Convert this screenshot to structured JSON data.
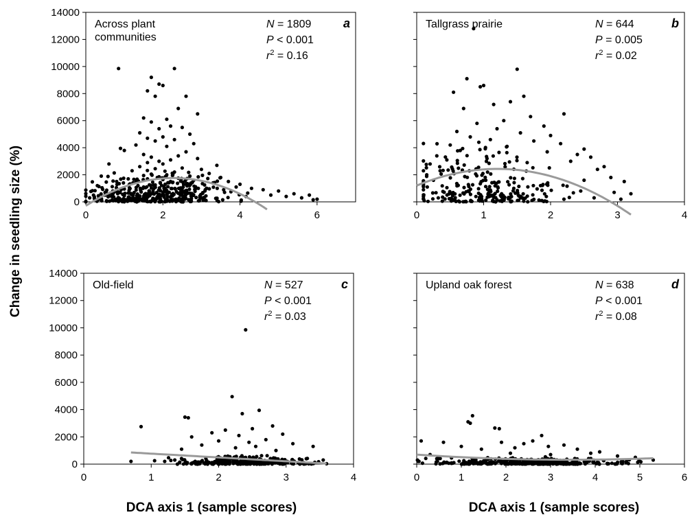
{
  "ylabel": "Change in seedling size (%)",
  "xlabel_left": "DCA axis 1 (sample scores)",
  "xlabel_right": "DCA axis 1 (sample scores)",
  "chart_data": [
    {
      "type": "scatter",
      "letter": "a",
      "label_lines": [
        "Across plant",
        "communities"
      ],
      "stats": {
        "N": "1809",
        "P": "< 0.001",
        "r2": "0.16"
      },
      "xlim": [
        0,
        7
      ],
      "ylim": [
        0,
        14000
      ],
      "xticks": [
        0,
        2,
        4,
        6
      ],
      "yticks": [
        0,
        2000,
        4000,
        6000,
        8000,
        10000,
        12000,
        14000
      ],
      "ytick_labels": true,
      "fit": [
        -290,
        1800,
        -395
      ],
      "fit_range": [
        0,
        4.7
      ],
      "cloud": {
        "n": 380,
        "peak": 1.8,
        "spread": 0.9,
        "xmin": 0,
        "xmax": 6.1,
        "level": 1200
      },
      "points": [
        [
          0.85,
          9850
        ],
        [
          2.3,
          9850
        ],
        [
          1.7,
          9200
        ],
        [
          1.9,
          8700
        ],
        [
          2.0,
          8600
        ],
        [
          1.6,
          8200
        ],
        [
          1.8,
          7800
        ],
        [
          2.6,
          7800
        ],
        [
          2.4,
          6900
        ],
        [
          2.9,
          6500
        ],
        [
          1.5,
          6200
        ],
        [
          2.1,
          6100
        ],
        [
          1.7,
          5900
        ],
        [
          2.2,
          5600
        ],
        [
          2.5,
          5500
        ],
        [
          1.9,
          5400
        ],
        [
          1.4,
          5100
        ],
        [
          2.7,
          5000
        ],
        [
          2.0,
          4800
        ],
        [
          1.6,
          4700
        ],
        [
          2.3,
          4600
        ],
        [
          1.8,
          4500
        ],
        [
          2.8,
          4300
        ],
        [
          1.3,
          4200
        ],
        [
          2.1,
          4100
        ],
        [
          0.9,
          3950
        ],
        [
          1.0,
          3800
        ],
        [
          2.6,
          3700
        ],
        [
          1.5,
          3500
        ],
        [
          2.4,
          3400
        ],
        [
          1.7,
          3300
        ],
        [
          2.9,
          3200
        ],
        [
          2.2,
          3100
        ],
        [
          1.9,
          3000
        ],
        [
          1.6,
          2900
        ],
        [
          0.6,
          2800
        ],
        [
          2.0,
          2800
        ],
        [
          3.4,
          2700
        ],
        [
          1.4,
          2600
        ],
        [
          2.5,
          2500
        ],
        [
          1.8,
          2450
        ],
        [
          3.0,
          2400
        ],
        [
          1.2,
          2300
        ],
        [
          2.3,
          2200
        ],
        [
          3.2,
          2100
        ],
        [
          1.7,
          2050
        ],
        [
          2.1,
          2000
        ],
        [
          0.4,
          1900
        ],
        [
          1.5,
          1950
        ],
        [
          2.7,
          1900
        ],
        [
          1.9,
          1850
        ],
        [
          3.5,
          1800
        ],
        [
          2.4,
          1750
        ],
        [
          1.1,
          1700
        ],
        [
          1.6,
          1700
        ],
        [
          2.0,
          1650
        ],
        [
          2.8,
          1600
        ],
        [
          3.7,
          1500
        ],
        [
          0.8,
          1500
        ],
        [
          2.2,
          1500
        ],
        [
          1.3,
          1450
        ],
        [
          3.3,
          1400
        ],
        [
          4.0,
          1300
        ],
        [
          2.6,
          1300
        ],
        [
          1.8,
          1250
        ],
        [
          0.3,
          1200
        ],
        [
          3.9,
          1100
        ],
        [
          4.3,
          1000
        ],
        [
          4.6,
          900
        ],
        [
          5.0,
          800
        ],
        [
          3.1,
          900
        ],
        [
          1.0,
          950
        ],
        [
          0.2,
          500
        ],
        [
          0.5,
          700
        ],
        [
          5.4,
          600
        ],
        [
          5.8,
          500
        ],
        [
          6.0,
          200
        ],
        [
          0.1,
          300
        ],
        [
          4.8,
          500
        ],
        [
          5.2,
          400
        ],
        [
          5.6,
          300
        ],
        [
          3.6,
          700
        ],
        [
          4.2,
          650
        ],
        [
          2.5,
          1000
        ],
        [
          1.5,
          1100
        ],
        [
          0.7,
          800
        ],
        [
          5.9,
          150
        ]
      ]
    },
    {
      "type": "scatter",
      "letter": "b",
      "label_lines": [
        "Tallgrass prairie"
      ],
      "stats": {
        "N": "644",
        "P": "0.005",
        "r2": "0.02"
      },
      "xlim": [
        0,
        4
      ],
      "ylim": [
        0,
        14000
      ],
      "xticks": [
        0,
        1,
        2,
        3,
        4
      ],
      "yticks": [
        0,
        2000,
        4000,
        6000,
        8000,
        10000,
        12000,
        14000
      ],
      "ytick_labels": false,
      "fit": [
        1200,
        2050,
        -850
      ],
      "fit_range": [
        0,
        3.2
      ],
      "cloud": {
        "n": 240,
        "peak": 1.0,
        "spread": 0.5,
        "xmin": 0.1,
        "xmax": 3.2,
        "level": 2200
      },
      "points": [
        [
          0.85,
          12800
        ],
        [
          1.5,
          9800
        ],
        [
          0.75,
          9100
        ],
        [
          1.0,
          8600
        ],
        [
          0.95,
          8500
        ],
        [
          0.55,
          8100
        ],
        [
          1.6,
          7800
        ],
        [
          1.4,
          7400
        ],
        [
          1.15,
          7200
        ],
        [
          0.7,
          6900
        ],
        [
          2.2,
          6500
        ],
        [
          1.7,
          6300
        ],
        [
          1.3,
          6000
        ],
        [
          0.9,
          5800
        ],
        [
          1.9,
          5600
        ],
        [
          1.2,
          5400
        ],
        [
          0.6,
          5200
        ],
        [
          1.55,
          5100
        ],
        [
          2.0,
          4900
        ],
        [
          0.8,
          4800
        ],
        [
          1.1,
          4600
        ],
        [
          1.75,
          4500
        ],
        [
          2.15,
          4300
        ],
        [
          0.5,
          4200
        ],
        [
          1.35,
          4100
        ],
        [
          2.5,
          3900
        ],
        [
          0.65,
          3800
        ],
        [
          1.95,
          3700
        ],
        [
          2.4,
          3500
        ],
        [
          0.3,
          3400
        ],
        [
          2.6,
          3300
        ],
        [
          1.05,
          3200
        ],
        [
          0.45,
          3100
        ],
        [
          2.3,
          3000
        ],
        [
          1.65,
          2900
        ],
        [
          0.2,
          2800
        ],
        [
          2.8,
          2600
        ],
        [
          2.7,
          2400
        ],
        [
          0.35,
          2300
        ],
        [
          0.15,
          2000
        ],
        [
          2.9,
          1800
        ],
        [
          3.1,
          1500
        ],
        [
          2.5,
          1600
        ],
        [
          0.25,
          1600
        ],
        [
          0.1,
          1300
        ],
        [
          2.65,
          300
        ],
        [
          3.2,
          600
        ],
        [
          3.05,
          200
        ],
        [
          2.2,
          200
        ],
        [
          0.55,
          150
        ],
        [
          1.2,
          150
        ],
        [
          2.45,
          800
        ],
        [
          2.95,
          700
        ],
        [
          1.85,
          1200
        ],
        [
          1.45,
          1000
        ]
      ]
    },
    {
      "type": "scatter",
      "letter": "c",
      "label_lines": [
        "Old-field"
      ],
      "stats": {
        "N": "527",
        "P": "< 0.001",
        "r2": "0.03"
      },
      "xlim": [
        0,
        4
      ],
      "ylim": [
        0,
        14000
      ],
      "xticks": [
        0,
        1,
        2,
        3,
        4
      ],
      "yticks": [
        0,
        2000,
        4000,
        6000,
        8000,
        10000,
        12000,
        14000
      ],
      "ytick_labels": true,
      "fit": [
        1050,
        -280,
        0
      ],
      "fit_range": [
        0.7,
        3.6
      ],
      "cloud": {
        "n": 300,
        "peak": 2.4,
        "spread": 0.45,
        "xmin": 1.2,
        "xmax": 3.6,
        "level": 300
      },
      "points": [
        [
          2.4,
          9850
        ],
        [
          2.2,
          4950
        ],
        [
          2.6,
          3950
        ],
        [
          2.35,
          3700
        ],
        [
          1.5,
          3450
        ],
        [
          1.55,
          3400
        ],
        [
          0.85,
          2750
        ],
        [
          2.8,
          2800
        ],
        [
          2.5,
          2600
        ],
        [
          2.1,
          2500
        ],
        [
          1.9,
          2300
        ],
        [
          2.95,
          2200
        ],
        [
          2.3,
          2100
        ],
        [
          1.6,
          2000
        ],
        [
          2.7,
          1800
        ],
        [
          2.0,
          1700
        ],
        [
          2.45,
          1600
        ],
        [
          3.1,
          1500
        ],
        [
          1.75,
          1400
        ],
        [
          2.55,
          1300
        ],
        [
          3.4,
          1300
        ],
        [
          2.25,
          1200
        ],
        [
          1.45,
          1100
        ],
        [
          2.85,
          1000
        ],
        [
          0.7,
          200
        ],
        [
          3.55,
          300
        ],
        [
          1.2,
          200
        ],
        [
          1.05,
          250
        ],
        [
          3.3,
          400
        ],
        [
          1.35,
          300
        ]
      ]
    },
    {
      "type": "scatter",
      "letter": "d",
      "label_lines": [
        "Upland oak forest"
      ],
      "stats": {
        "N": "638",
        "P": "< 0.001",
        "r2": "0.08"
      },
      "xlim": [
        0,
        6
      ],
      "ylim": [
        0,
        14000
      ],
      "xticks": [
        0,
        1,
        2,
        3,
        4,
        5,
        6
      ],
      "yticks": [
        0,
        2000,
        4000,
        6000,
        8000,
        10000,
        12000,
        14000
      ],
      "ytick_labels": false,
      "fit": [
        700,
        -220,
        32
      ],
      "fit_range": [
        0,
        5.3
      ],
      "cloud": {
        "n": 360,
        "peak": 2.5,
        "spread": 1.0,
        "xmin": 0,
        "xmax": 5.3,
        "level": 250
      },
      "points": [
        [
          1.25,
          3550
        ],
        [
          1.15,
          3100
        ],
        [
          1.2,
          3000
        ],
        [
          1.75,
          2650
        ],
        [
          1.85,
          2600
        ],
        [
          2.8,
          2100
        ],
        [
          0.1,
          1700
        ],
        [
          2.6,
          1700
        ],
        [
          0.6,
          1600
        ],
        [
          1.9,
          1600
        ],
        [
          2.4,
          1500
        ],
        [
          3.3,
          1400
        ],
        [
          1.0,
          1300
        ],
        [
          2.95,
          1300
        ],
        [
          2.2,
          1200
        ],
        [
          3.6,
          1100
        ],
        [
          1.45,
          1100
        ],
        [
          4.1,
          900
        ],
        [
          3.9,
          800
        ],
        [
          0.3,
          700
        ],
        [
          4.5,
          600
        ],
        [
          4.9,
          500
        ],
        [
          5.3,
          300
        ],
        [
          0.05,
          200
        ],
        [
          4.7,
          200
        ],
        [
          0.45,
          400
        ],
        [
          3.0,
          700
        ],
        [
          2.1,
          800
        ]
      ]
    }
  ]
}
